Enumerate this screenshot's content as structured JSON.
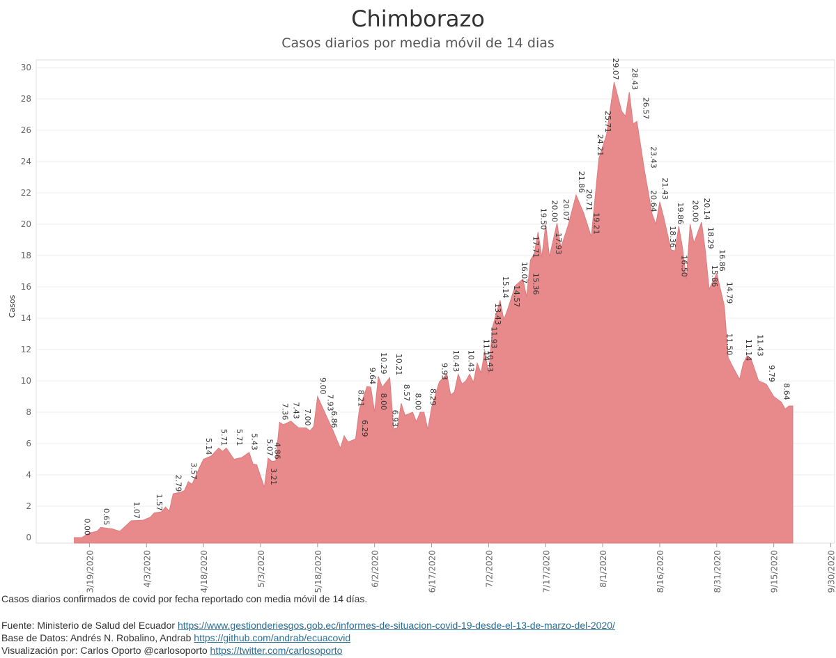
{
  "header": {
    "title": "Chimborazo",
    "subtitle": "Casos diarios por media móvil de 14 dias"
  },
  "footer": {
    "note": "Casos diarios confirmados de covid por fecha reportado con media móvil de 14 días.",
    "source_prefix": "Fuente: Ministerio de Salud del Ecuador ",
    "source_link": "https://www.gestionderiesgos.gob.ec/informes-de-situacion-covid-19-desde-el-13-de-marzo-del-2020/",
    "db_prefix": "Base de Datos: Andrés N. Robalino, Andrab ",
    "db_link": "https://github.com/andrab/ecuacovid",
    "viz_prefix": "Visualización por: Carlos Oporto @carlosoporto ",
    "viz_link": "https://twitter.com/carlosoporto"
  },
  "chart_data": {
    "type": "area",
    "ylabel": "Casos",
    "ylim": [
      0,
      30
    ],
    "yticks": [
      0,
      2,
      4,
      6,
      8,
      10,
      12,
      14,
      16,
      18,
      20,
      22,
      24,
      26,
      28,
      30
    ],
    "xlim": [
      "2020-03-05",
      "2020-10-01"
    ],
    "xticks": [
      "3/19/2020",
      "4/3/2020",
      "4/18/2020",
      "5/3/2020",
      "5/18/2020",
      "6/2/2020",
      "6/17/2020",
      "7/2/2020",
      "7/17/2020",
      "8/1/2020",
      "8/16/2020",
      "8/31/2020",
      "9/15/2020",
      "9/30/2020"
    ],
    "color": "#e8898b",
    "points": [
      [
        "2020-03-15",
        0.0
      ],
      [
        "2020-03-17",
        0.0
      ],
      [
        "2020-03-19",
        0.3
      ],
      [
        "2020-03-21",
        0.4
      ],
      [
        "2020-03-22",
        0.65
      ],
      [
        "2020-03-25",
        0.55
      ],
      [
        "2020-03-27",
        0.4
      ],
      [
        "2020-03-30",
        1.07
      ],
      [
        "2020-04-02",
        1.1
      ],
      [
        "2020-04-04",
        1.3
      ],
      [
        "2020-04-05",
        1.57
      ],
      [
        "2020-04-07",
        1.65
      ],
      [
        "2020-04-08",
        1.95
      ],
      [
        "2020-04-09",
        1.7
      ],
      [
        "2020-04-10",
        2.79
      ],
      [
        "2020-04-12",
        2.9
      ],
      [
        "2020-04-13",
        3.0
      ],
      [
        "2020-04-14",
        3.57
      ],
      [
        "2020-04-15",
        3.4
      ],
      [
        "2020-04-17",
        4.5
      ],
      [
        "2020-04-18",
        5.0
      ],
      [
        "2020-04-20",
        5.2
      ],
      [
        "2020-04-22",
        5.71
      ],
      [
        "2020-04-23",
        5.5
      ],
      [
        "2020-04-24",
        5.71
      ],
      [
        "2020-04-26",
        5.0
      ],
      [
        "2020-04-28",
        5.1
      ],
      [
        "2020-04-30",
        5.43
      ],
      [
        "2020-05-01",
        4.7
      ],
      [
        "2020-05-02",
        4.65
      ],
      [
        "2020-05-04",
        3.21
      ],
      [
        "2020-05-05",
        5.07
      ],
      [
        "2020-05-06",
        4.86
      ],
      [
        "2020-05-07",
        4.9
      ],
      [
        "2020-05-08",
        7.36
      ],
      [
        "2020-05-09",
        7.2
      ],
      [
        "2020-05-11",
        7.43
      ],
      [
        "2020-05-13",
        7.0
      ],
      [
        "2020-05-15",
        7.0
      ],
      [
        "2020-05-16",
        6.8
      ],
      [
        "2020-05-17",
        7.1
      ],
      [
        "2020-05-18",
        9.0
      ],
      [
        "2020-05-20",
        7.93
      ],
      [
        "2020-05-22",
        6.86
      ],
      [
        "2020-05-24",
        5.7
      ],
      [
        "2020-05-25",
        6.5
      ],
      [
        "2020-05-26",
        6.1
      ],
      [
        "2020-05-28",
        6.29
      ],
      [
        "2020-05-29",
        8.21
      ],
      [
        "2020-05-31",
        9.64
      ],
      [
        "2020-06-01",
        9.6
      ],
      [
        "2020-06-02",
        8.0
      ],
      [
        "2020-06-03",
        10.29
      ],
      [
        "2020-06-04",
        9.6
      ],
      [
        "2020-06-06",
        10.21
      ],
      [
        "2020-06-07",
        6.93
      ],
      [
        "2020-06-08",
        7.0
      ],
      [
        "2020-06-09",
        8.57
      ],
      [
        "2020-06-10",
        7.8
      ],
      [
        "2020-06-12",
        8.0
      ],
      [
        "2020-06-13",
        7.4
      ],
      [
        "2020-06-14",
        8.0
      ],
      [
        "2020-06-15",
        8.0
      ],
      [
        "2020-06-16",
        6.9
      ],
      [
        "2020-06-17",
        8.29
      ],
      [
        "2020-06-19",
        9.93
      ],
      [
        "2020-06-21",
        10.43
      ],
      [
        "2020-06-22",
        9.1
      ],
      [
        "2020-06-23",
        9.3
      ],
      [
        "2020-06-24",
        10.43
      ],
      [
        "2020-06-25",
        9.8
      ],
      [
        "2020-06-26",
        10.0
      ],
      [
        "2020-06-27",
        10.43
      ],
      [
        "2020-06-28",
        9.9
      ],
      [
        "2020-06-29",
        11.14
      ],
      [
        "2020-06-30",
        10.5
      ],
      [
        "2020-07-01",
        11.93
      ],
      [
        "2020-07-02",
        10.43
      ],
      [
        "2020-07-03",
        13.43
      ],
      [
        "2020-07-05",
        15.14
      ],
      [
        "2020-07-06",
        13.9
      ],
      [
        "2020-07-07",
        14.57
      ],
      [
        "2020-07-09",
        16.07
      ],
      [
        "2020-07-11",
        16.5
      ],
      [
        "2020-07-12",
        15.36
      ],
      [
        "2020-07-13",
        17.71
      ],
      [
        "2020-07-14",
        18.1
      ],
      [
        "2020-07-15",
        19.5
      ],
      [
        "2020-07-16",
        17.9
      ],
      [
        "2020-07-17",
        20.0
      ],
      [
        "2020-07-18",
        17.93
      ],
      [
        "2020-07-20",
        20.07
      ],
      [
        "2020-07-21",
        18.5
      ],
      [
        "2020-07-23",
        20.0
      ],
      [
        "2020-07-25",
        21.86
      ],
      [
        "2020-07-27",
        20.71
      ],
      [
        "2020-07-29",
        19.21
      ],
      [
        "2020-07-31",
        24.21
      ],
      [
        "2020-08-02",
        25.71
      ],
      [
        "2020-08-04",
        29.07
      ],
      [
        "2020-08-06",
        27.2
      ],
      [
        "2020-08-07",
        26.9
      ],
      [
        "2020-08-08",
        28.43
      ],
      [
        "2020-08-09",
        26.4
      ],
      [
        "2020-08-10",
        26.57
      ],
      [
        "2020-08-12",
        23.43
      ],
      [
        "2020-08-14",
        20.64
      ],
      [
        "2020-08-15",
        20.0
      ],
      [
        "2020-08-16",
        21.43
      ],
      [
        "2020-08-17",
        20.5
      ],
      [
        "2020-08-19",
        18.36
      ],
      [
        "2020-08-20",
        18.3
      ],
      [
        "2020-08-21",
        19.86
      ],
      [
        "2020-08-22",
        18.5
      ],
      [
        "2020-08-23",
        16.5
      ],
      [
        "2020-08-24",
        20.0
      ],
      [
        "2020-08-25",
        18.8
      ],
      [
        "2020-08-27",
        20.14
      ],
      [
        "2020-08-28",
        18.29
      ],
      [
        "2020-08-29",
        15.86
      ],
      [
        "2020-08-31",
        16.86
      ],
      [
        "2020-09-02",
        14.79
      ],
      [
        "2020-09-03",
        11.5
      ],
      [
        "2020-09-04",
        11.0
      ],
      [
        "2020-09-06",
        10.1
      ],
      [
        "2020-09-07",
        11.14
      ],
      [
        "2020-09-08",
        11.6
      ],
      [
        "2020-09-09",
        11.43
      ],
      [
        "2020-09-11",
        10.0
      ],
      [
        "2020-09-13",
        9.79
      ],
      [
        "2020-09-15",
        9.0
      ],
      [
        "2020-09-17",
        8.64
      ],
      [
        "2020-09-18",
        8.2
      ],
      [
        "2020-09-19",
        8.4
      ],
      [
        "2020-09-20",
        8.4
      ]
    ],
    "labels": [
      [
        "2020-03-17",
        0.0,
        "0.00"
      ],
      [
        "2020-03-22",
        0.65,
        "0.65"
      ],
      [
        "2020-03-30",
        1.07,
        "1.07"
      ],
      [
        "2020-04-05",
        1.57,
        "1.57"
      ],
      [
        "2020-04-10",
        2.79,
        "2.79"
      ],
      [
        "2020-04-14",
        3.57,
        "3.57"
      ],
      [
        "2020-04-18",
        5.14,
        "5.14"
      ],
      [
        "2020-04-22",
        5.71,
        "5.71"
      ],
      [
        "2020-04-26",
        5.71,
        "5.71"
      ],
      [
        "2020-04-30",
        5.43,
        "5.43"
      ],
      [
        "2020-05-04",
        5.07,
        "5.07"
      ],
      [
        "2020-05-05",
        3.21,
        "3.21"
      ],
      [
        "2020-05-06",
        4.86,
        "4.86"
      ],
      [
        "2020-05-08",
        7.36,
        "7.36"
      ],
      [
        "2020-05-11",
        7.43,
        "7.43"
      ],
      [
        "2020-05-14",
        7.0,
        "7.00"
      ],
      [
        "2020-05-18",
        9.0,
        "9.00"
      ],
      [
        "2020-05-20",
        7.93,
        "7.93"
      ],
      [
        "2020-05-21",
        6.86,
        "6.86"
      ],
      [
        "2020-05-28",
        8.21,
        "8.21"
      ],
      [
        "2020-05-29",
        6.29,
        "6.29"
      ],
      [
        "2020-05-31",
        9.64,
        "9.64"
      ],
      [
        "2020-06-03",
        10.29,
        "10.29"
      ],
      [
        "2020-06-03",
        8.0,
        "8.00"
      ],
      [
        "2020-06-06",
        6.93,
        "6.93"
      ],
      [
        "2020-06-07",
        10.21,
        "10.21"
      ],
      [
        "2020-06-09",
        8.57,
        "8.57"
      ],
      [
        "2020-06-12",
        8.0,
        "8.00"
      ],
      [
        "2020-06-16",
        8.29,
        "8.29"
      ],
      [
        "2020-06-19",
        9.93,
        "9.93"
      ],
      [
        "2020-06-22",
        10.43,
        "10.43"
      ],
      [
        "2020-06-26",
        10.43,
        "10.43"
      ],
      [
        "2020-06-30",
        11.14,
        "11.14"
      ],
      [
        "2020-07-01",
        10.43,
        "10.43"
      ],
      [
        "2020-07-02",
        11.93,
        "11.93"
      ],
      [
        "2020-07-03",
        13.43,
        "13.43"
      ],
      [
        "2020-07-05",
        15.14,
        "15.14"
      ],
      [
        "2020-07-08",
        14.57,
        "14.57"
      ],
      [
        "2020-07-10",
        16.07,
        "16.07"
      ],
      [
        "2020-07-13",
        17.71,
        "17.71"
      ],
      [
        "2020-07-13",
        15.36,
        "15.36"
      ],
      [
        "2020-07-15",
        19.5,
        "19.50"
      ],
      [
        "2020-07-18",
        20.0,
        "20.00"
      ],
      [
        "2020-07-19",
        17.93,
        "17.93"
      ],
      [
        "2020-07-21",
        20.07,
        "20.07"
      ],
      [
        "2020-07-25",
        21.86,
        "21.86"
      ],
      [
        "2020-07-27",
        20.71,
        "20.71"
      ],
      [
        "2020-07-29",
        19.21,
        "19.21"
      ],
      [
        "2020-07-30",
        24.21,
        "24.21"
      ],
      [
        "2020-08-01",
        25.71,
        "25.71"
      ],
      [
        "2020-08-03",
        29.07,
        "29.07"
      ],
      [
        "2020-08-08",
        28.43,
        "28.43"
      ],
      [
        "2020-08-11",
        26.57,
        "26.57"
      ],
      [
        "2020-08-13",
        23.43,
        "23.43"
      ],
      [
        "2020-08-13",
        20.64,
        "20.64"
      ],
      [
        "2020-08-16",
        21.43,
        "21.43"
      ],
      [
        "2020-08-18",
        18.36,
        "18.36"
      ],
      [
        "2020-08-20",
        19.86,
        "19.86"
      ],
      [
        "2020-08-21",
        16.5,
        "16.50"
      ],
      [
        "2020-08-24",
        20.0,
        "20.00"
      ],
      [
        "2020-08-27",
        20.14,
        "20.14"
      ],
      [
        "2020-08-28",
        18.29,
        "18.29"
      ],
      [
        "2020-08-29",
        15.86,
        "15.86"
      ],
      [
        "2020-08-31",
        16.86,
        "16.86"
      ],
      [
        "2020-09-02",
        14.79,
        "14.79"
      ],
      [
        "2020-09-02",
        11.5,
        "11.50"
      ],
      [
        "2020-09-07",
        11.14,
        "11.14"
      ],
      [
        "2020-09-10",
        11.43,
        "11.43"
      ],
      [
        "2020-09-13",
        9.79,
        "9.79"
      ],
      [
        "2020-09-17",
        8.64,
        "8.64"
      ]
    ]
  }
}
